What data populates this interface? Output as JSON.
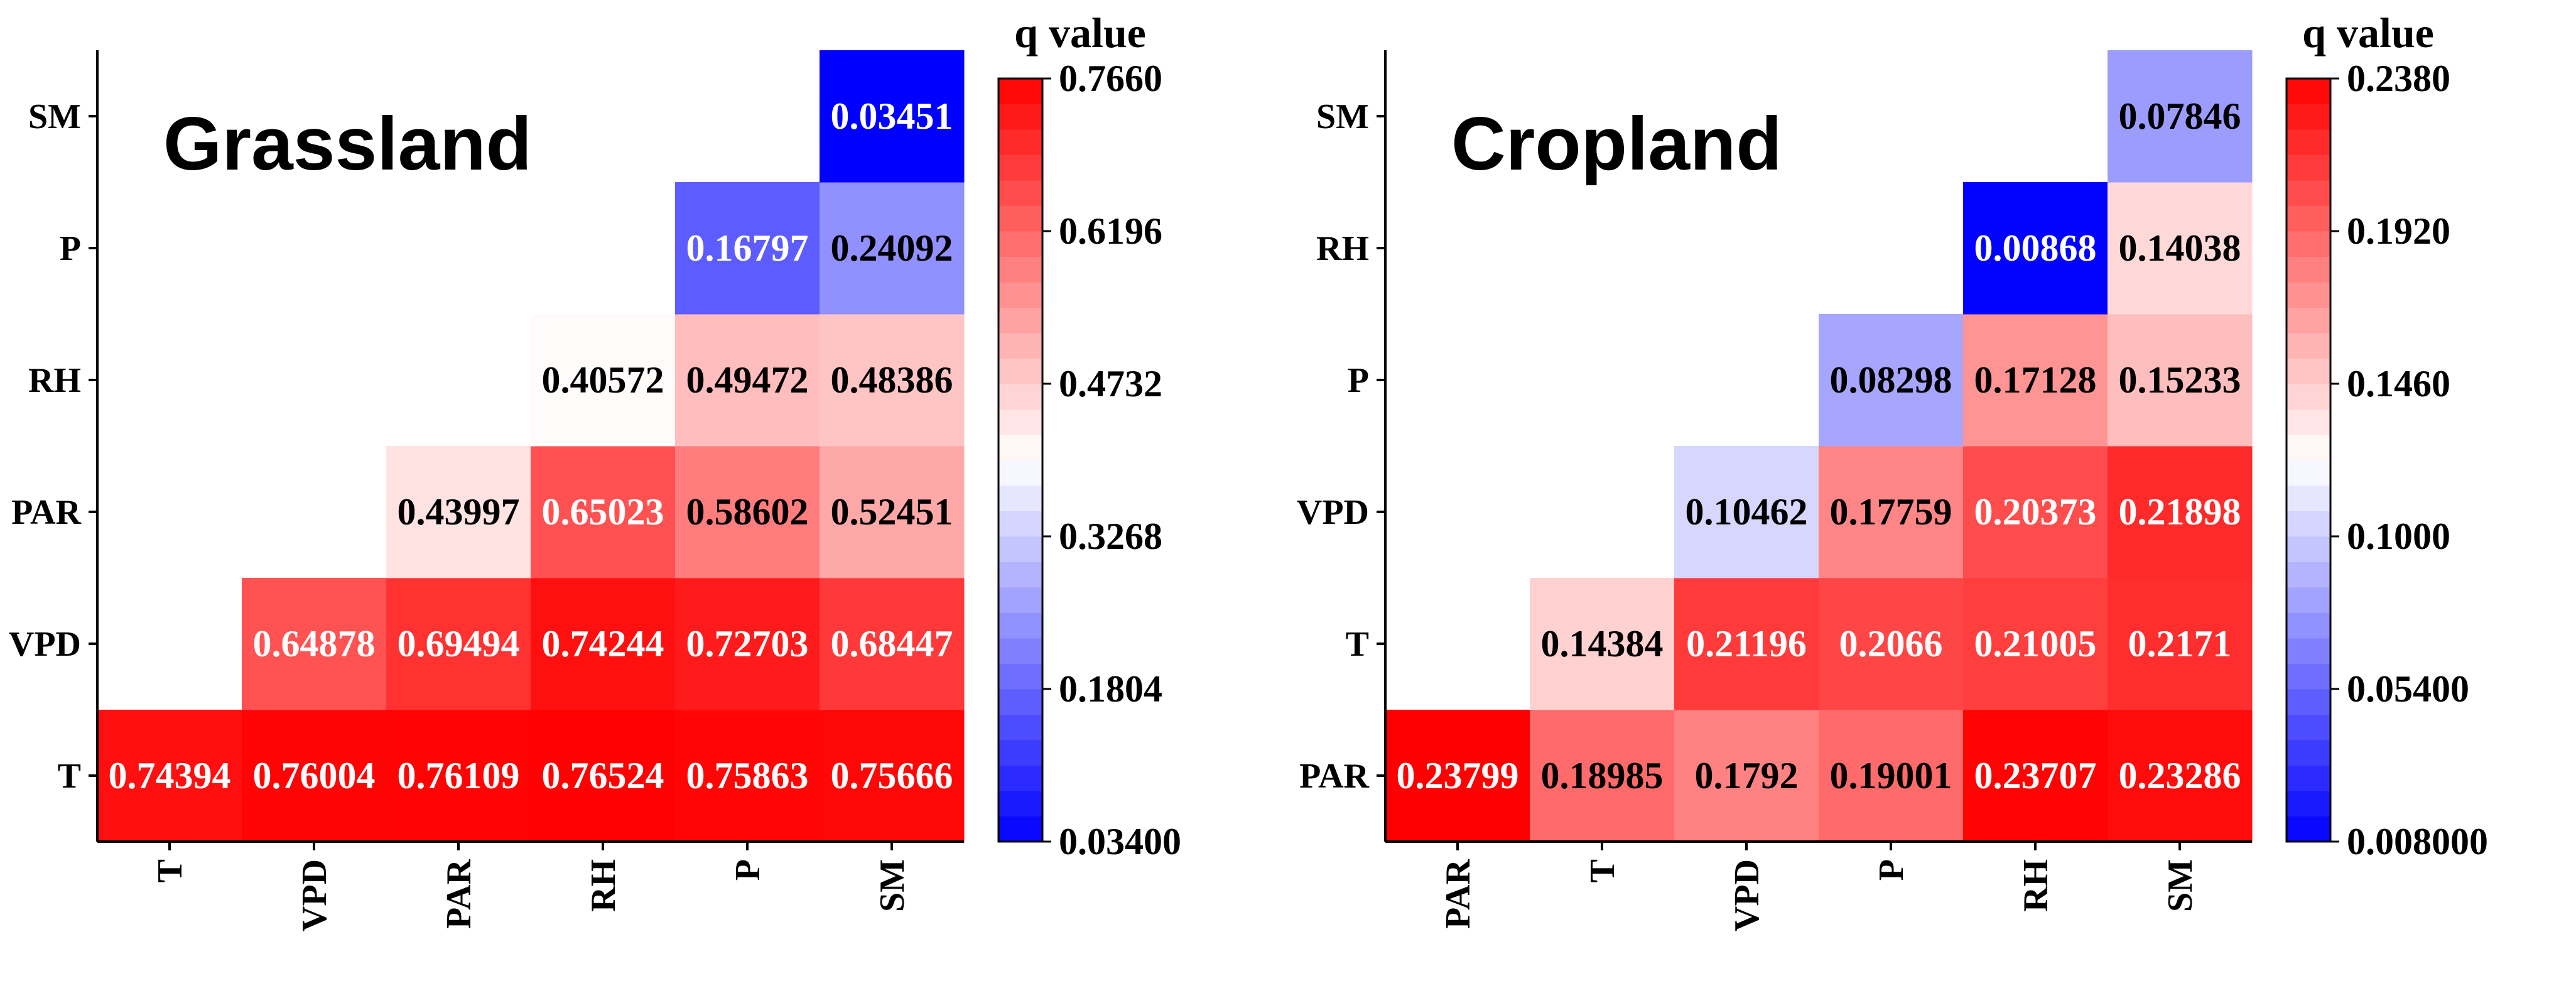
{
  "chart_data": [
    {
      "type": "heatmap",
      "title": "Grassland",
      "colorbar_title": "q value",
      "x_labels": [
        "T",
        "VPD",
        "PAR",
        "RH",
        "P",
        "SM"
      ],
      "y_labels": [
        "T",
        "VPD",
        "PAR",
        "RH",
        "P",
        "SM"
      ],
      "matrix": [
        [
          0.74394,
          0.76004,
          0.76109,
          0.76524,
          0.75863,
          0.75666
        ],
        [
          null,
          0.64878,
          0.69494,
          0.74244,
          0.72703,
          0.68447
        ],
        [
          null,
          null,
          0.43997,
          0.65023,
          0.58602,
          0.52451
        ],
        [
          null,
          null,
          null,
          0.40572,
          0.49472,
          0.48386
        ],
        [
          null,
          null,
          null,
          null,
          0.16797,
          0.24092
        ],
        [
          null,
          null,
          null,
          null,
          null,
          0.03451
        ]
      ],
      "cell_labels": [
        [
          "0.74394",
          "0.76004",
          "0.76109",
          "0.76524",
          "0.75863",
          "0.75666"
        ],
        [
          null,
          "0.64878",
          "0.69494",
          "0.74244",
          "0.72703",
          "0.68447"
        ],
        [
          null,
          null,
          "0.43997",
          "0.65023",
          "0.58602",
          "0.52451"
        ],
        [
          null,
          null,
          null,
          "0.40572",
          "0.49472",
          "0.48386"
        ],
        [
          null,
          null,
          null,
          null,
          "0.16797",
          "0.24092"
        ],
        [
          null,
          null,
          null,
          null,
          null,
          "0.03451"
        ]
      ],
      "vmin": 0.034,
      "vmax": 0.766,
      "colorbar_ticks": [
        "0.03400",
        "0.1804",
        "0.3268",
        "0.4732",
        "0.6196",
        "0.7660"
      ],
      "colorscale": [
        "#0000ff",
        "#ffffff",
        "#ff0000"
      ]
    },
    {
      "type": "heatmap",
      "title": "Cropland",
      "colorbar_title": "q value",
      "x_labels": [
        "PAR",
        "T",
        "VPD",
        "P",
        "RH",
        "SM"
      ],
      "y_labels": [
        "PAR",
        "T",
        "VPD",
        "P",
        "RH",
        "SM"
      ],
      "matrix": [
        [
          0.23799,
          0.18985,
          0.1792,
          0.19001,
          0.23707,
          0.23286
        ],
        [
          null,
          0.14384,
          0.21196,
          0.2066,
          0.21005,
          0.2171
        ],
        [
          null,
          null,
          0.10462,
          0.17759,
          0.20373,
          0.21898
        ],
        [
          null,
          null,
          null,
          0.08298,
          0.17128,
          0.15233
        ],
        [
          null,
          null,
          null,
          null,
          0.00868,
          0.14038
        ],
        [
          null,
          null,
          null,
          null,
          null,
          0.07846
        ]
      ],
      "cell_labels": [
        [
          "0.23799",
          "0.18985",
          "0.1792",
          "0.19001",
          "0.23707",
          "0.23286"
        ],
        [
          null,
          "0.14384",
          "0.21196",
          "0.2066",
          "0.21005",
          "0.2171"
        ],
        [
          null,
          null,
          "0.10462",
          "0.17759",
          "0.20373",
          "0.21898"
        ],
        [
          null,
          null,
          null,
          "0.08298",
          "0.17128",
          "0.15233"
        ],
        [
          null,
          null,
          null,
          null,
          "0.00868",
          "0.14038"
        ],
        [
          null,
          null,
          null,
          null,
          null,
          "0.07846"
        ]
      ],
      "vmin": 0.008,
      "vmax": 0.238,
      "colorbar_ticks": [
        "0.008000",
        "0.05400",
        "0.1000",
        "0.1460",
        "0.1920",
        "0.2380"
      ],
      "colorscale": [
        "#0000ff",
        "#ffffff",
        "#ff0000"
      ]
    }
  ]
}
